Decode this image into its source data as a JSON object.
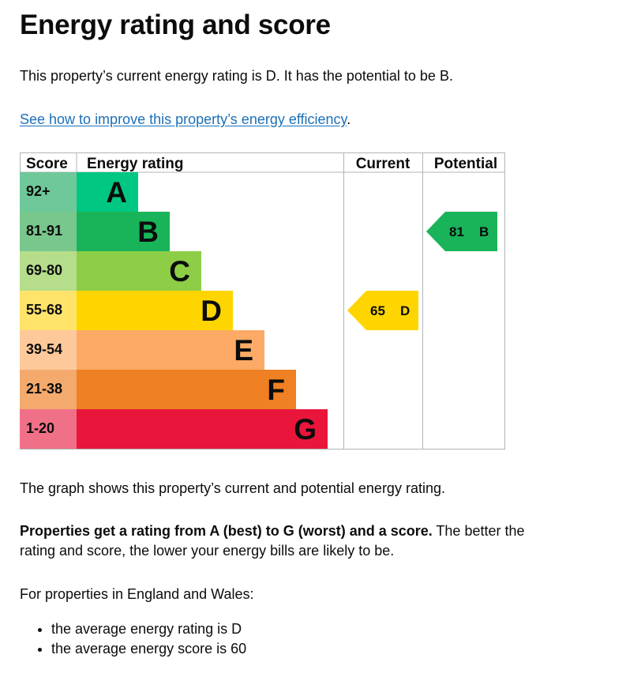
{
  "heading": "Energy rating and score",
  "intro": "This property’s current energy rating is D. It has the potential to be B.",
  "link": {
    "text": "See how to improve this property’s energy efficiency",
    "suffix": "."
  },
  "chart_data": {
    "type": "table",
    "headers": {
      "score": "Score",
      "rating": "Energy rating",
      "current": "Current",
      "potential": "Potential"
    },
    "bands": [
      {
        "range": "92+",
        "letter": "A",
        "color": "#00c781",
        "score_color": "#6fc89a"
      },
      {
        "range": "81-91",
        "letter": "B",
        "color": "#19b459",
        "score_color": "#78c78d"
      },
      {
        "range": "69-80",
        "letter": "C",
        "color": "#8dce46",
        "score_color": "#b5dd8a"
      },
      {
        "range": "55-68",
        "letter": "D",
        "color": "#ffd500",
        "score_color": "#ffe36b"
      },
      {
        "range": "39-54",
        "letter": "E",
        "color": "#fcaa65",
        "score_color": "#fdc99b"
      },
      {
        "range": "21-38",
        "letter": "F",
        "color": "#ef8023",
        "score_color": "#f4aa6c"
      },
      {
        "range": "1-20",
        "letter": "G",
        "color": "#e9153b",
        "score_color": "#f07088"
      }
    ],
    "current": {
      "score": "65",
      "letter": "D",
      "band_index": 3,
      "color": "#ffd500"
    },
    "potential": {
      "score": "81",
      "letter": "B",
      "band_index": 1,
      "color": "#19b459"
    }
  },
  "graph_caption": "The graph shows this property’s current and potential energy rating.",
  "ratings_info": {
    "bold": "Properties get a rating from A (best) to G (worst) and a score.",
    "rest": " The better the rating and score, the lower your energy bills are likely to be."
  },
  "regional_intro": "For properties in England and Wales:",
  "averages": [
    "the average energy rating is D",
    "the average energy score is 60"
  ]
}
